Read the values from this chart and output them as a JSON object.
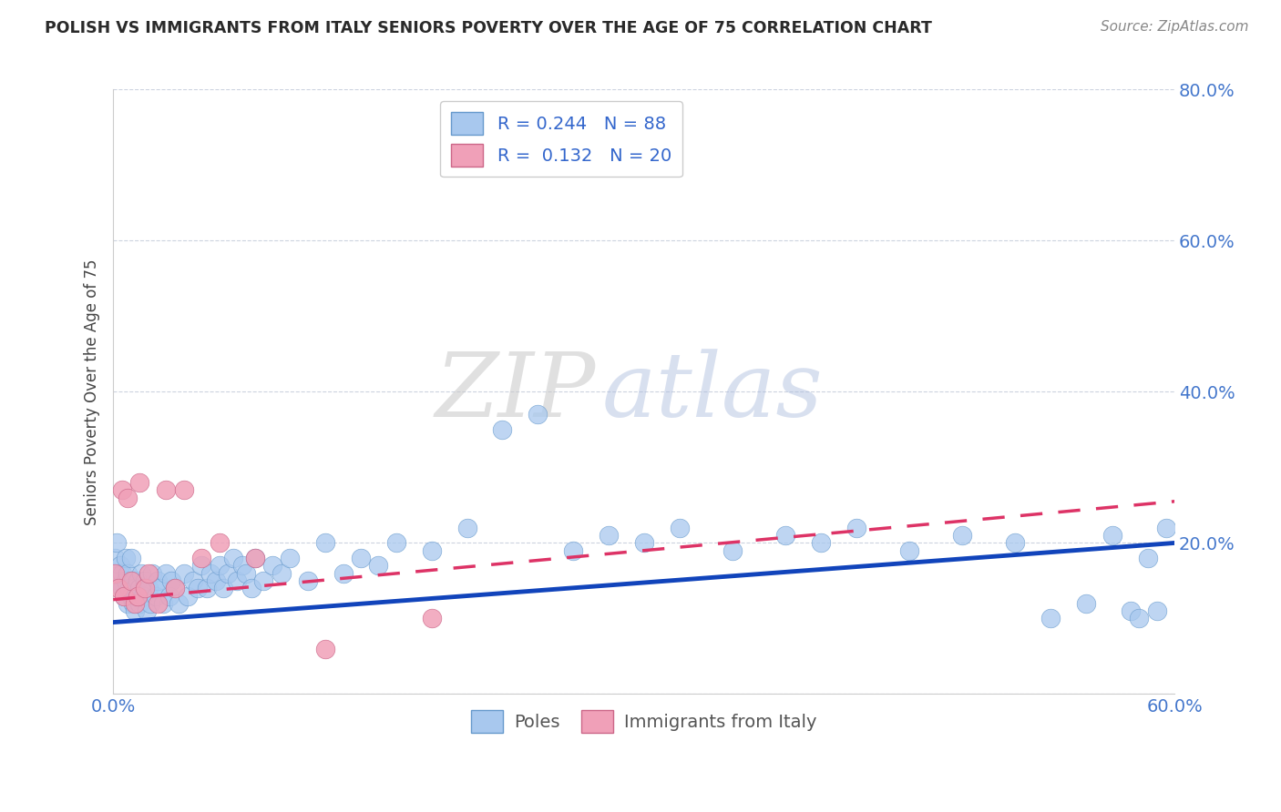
{
  "title": "POLISH VS IMMIGRANTS FROM ITALY SENIORS POVERTY OVER THE AGE OF 75 CORRELATION CHART",
  "source": "Source: ZipAtlas.com",
  "ylabel": "Seniors Poverty Over the Age of 75",
  "xlim": [
    0.0,
    0.6
  ],
  "ylim": [
    0.0,
    0.8
  ],
  "watermark_zip": "ZIP",
  "watermark_atlas": "atlas",
  "poles_color": "#a8c8ee",
  "poles_edge": "#6699cc",
  "italy_color": "#f0a0b8",
  "italy_edge": "#cc6688",
  "trend_poles_color": "#1144bb",
  "trend_italy_color": "#dd3366",
  "background_color": "#ffffff",
  "label_poles": "Poles",
  "label_italy": "Immigrants from Italy",
  "poles_x": [
    0.001,
    0.002,
    0.003,
    0.004,
    0.005,
    0.005,
    0.006,
    0.007,
    0.007,
    0.008,
    0.008,
    0.009,
    0.01,
    0.01,
    0.011,
    0.011,
    0.012,
    0.012,
    0.013,
    0.014,
    0.015,
    0.015,
    0.016,
    0.017,
    0.018,
    0.019,
    0.02,
    0.021,
    0.022,
    0.024,
    0.025,
    0.026,
    0.028,
    0.03,
    0.032,
    0.033,
    0.035,
    0.037,
    0.04,
    0.042,
    0.045,
    0.048,
    0.05,
    0.053,
    0.055,
    0.058,
    0.06,
    0.062,
    0.065,
    0.068,
    0.07,
    0.073,
    0.075,
    0.078,
    0.08,
    0.085,
    0.09,
    0.095,
    0.1,
    0.11,
    0.12,
    0.13,
    0.14,
    0.15,
    0.16,
    0.18,
    0.2,
    0.22,
    0.24,
    0.26,
    0.28,
    0.3,
    0.32,
    0.35,
    0.38,
    0.4,
    0.42,
    0.45,
    0.48,
    0.51,
    0.53,
    0.55,
    0.565,
    0.575,
    0.58,
    0.585,
    0.59,
    0.595
  ],
  "poles_y": [
    0.18,
    0.2,
    0.15,
    0.17,
    0.16,
    0.14,
    0.13,
    0.15,
    0.18,
    0.12,
    0.16,
    0.14,
    0.13,
    0.18,
    0.12,
    0.15,
    0.14,
    0.11,
    0.13,
    0.15,
    0.14,
    0.12,
    0.16,
    0.13,
    0.15,
    0.11,
    0.14,
    0.12,
    0.16,
    0.13,
    0.15,
    0.14,
    0.12,
    0.16,
    0.13,
    0.15,
    0.14,
    0.12,
    0.16,
    0.13,
    0.15,
    0.14,
    0.17,
    0.14,
    0.16,
    0.15,
    0.17,
    0.14,
    0.16,
    0.18,
    0.15,
    0.17,
    0.16,
    0.14,
    0.18,
    0.15,
    0.17,
    0.16,
    0.18,
    0.15,
    0.2,
    0.16,
    0.18,
    0.17,
    0.2,
    0.19,
    0.22,
    0.35,
    0.37,
    0.19,
    0.21,
    0.2,
    0.22,
    0.19,
    0.21,
    0.2,
    0.22,
    0.19,
    0.21,
    0.2,
    0.1,
    0.12,
    0.21,
    0.11,
    0.1,
    0.18,
    0.11,
    0.22
  ],
  "italy_x": [
    0.001,
    0.003,
    0.005,
    0.006,
    0.008,
    0.01,
    0.012,
    0.014,
    0.015,
    0.018,
    0.02,
    0.025,
    0.03,
    0.035,
    0.04,
    0.05,
    0.06,
    0.08,
    0.12,
    0.18
  ],
  "italy_y": [
    0.16,
    0.14,
    0.27,
    0.13,
    0.26,
    0.15,
    0.12,
    0.13,
    0.28,
    0.14,
    0.16,
    0.12,
    0.27,
    0.14,
    0.27,
    0.18,
    0.2,
    0.18,
    0.06,
    0.1
  ],
  "trend_poles_x0": 0.0,
  "trend_poles_y0": 0.095,
  "trend_poles_x1": 0.6,
  "trend_poles_y1": 0.2,
  "trend_italy_x0": 0.0,
  "trend_italy_y0": 0.125,
  "trend_italy_x1": 0.6,
  "trend_italy_y1": 0.255
}
